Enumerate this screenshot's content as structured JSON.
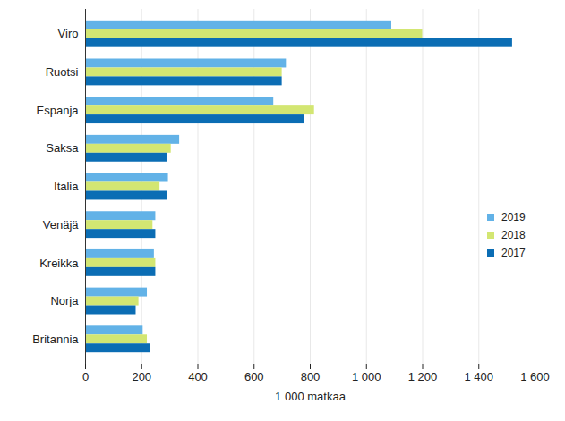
{
  "chart_data": {
    "type": "bar",
    "orientation": "horizontal",
    "categories": [
      "Viro",
      "Ruotsi",
      "Espanja",
      "Saksa",
      "Italia",
      "Venäjä",
      "Kreikka",
      "Norja",
      "Britannia"
    ],
    "series": [
      {
        "name": "2019",
        "color": "#62b2e7",
        "values": [
          1090,
          715,
          670,
          335,
          295,
          250,
          245,
          220,
          205
        ]
      },
      {
        "name": "2018",
        "color": "#d3e672",
        "values": [
          1200,
          700,
          815,
          305,
          265,
          240,
          250,
          190,
          220
        ]
      },
      {
        "name": "2017",
        "color": "#0b6db4",
        "values": [
          1520,
          700,
          780,
          290,
          290,
          250,
          250,
          180,
          230
        ]
      }
    ],
    "x_label": "1 000 matkaa",
    "xlim": [
      0,
      1600
    ],
    "xticks": [
      0,
      200,
      400,
      600,
      800,
      {
        "value": 1000,
        "label": "1 000"
      },
      {
        "value": 1200,
        "label": "1 200"
      },
      {
        "value": 1400,
        "label": "1 400"
      },
      {
        "value": 1600,
        "label": "1 600"
      }
    ],
    "grid": true,
    "legend": "right"
  }
}
